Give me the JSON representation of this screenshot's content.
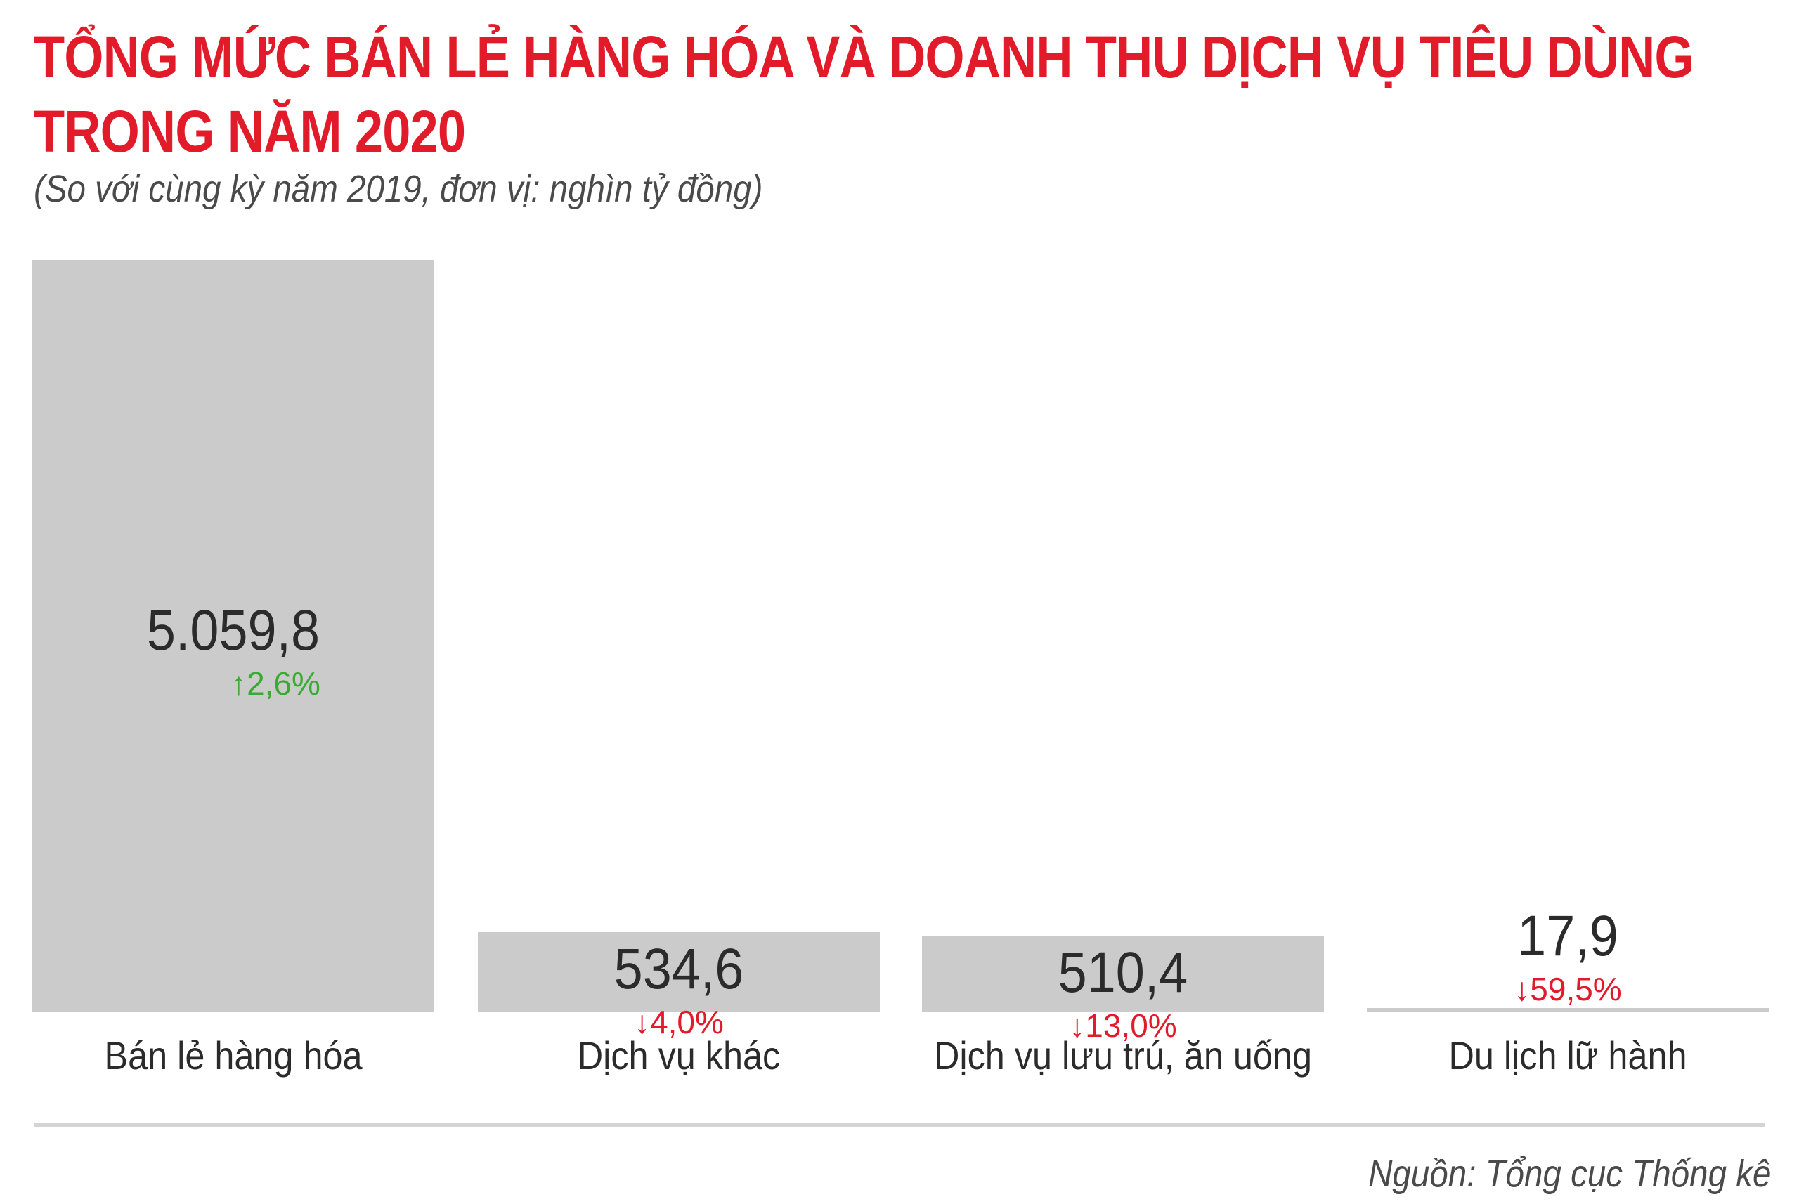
{
  "title_line1": "TỔNG MỨC BÁN LẺ HÀNG HÓA VÀ DOANH THU DỊCH VỤ TIÊU DÙNG",
  "title_line2": "TRONG NĂM 2020",
  "subtitle": "(So với cùng kỳ năm 2019, đơn vị: nghìn tỷ đồng)",
  "source": "Nguồn: Tổng cục Thống kê",
  "colors": {
    "bar": "#cccbcb",
    "baseline": "#d4d4d4",
    "value_text": "#2b2b2b",
    "up": "#3aaa35",
    "down": "#e21b2b",
    "title": "#e21b2b"
  },
  "chart_data": {
    "type": "bar",
    "categories": [
      "Bán lẻ hàng hóa",
      "Dịch vụ khác",
      "Dịch vụ lưu trú, ăn uống",
      "Du lịch lữ hành"
    ],
    "values": [
      5059.8,
      534.6,
      510.4,
      17.9
    ],
    "value_labels": [
      "5.059,8",
      "534,6",
      "510,4",
      "17,9"
    ],
    "changes": [
      {
        "direction": "up",
        "label": "2,6%"
      },
      {
        "direction": "down",
        "label": "4,0%"
      },
      {
        "direction": "down",
        "label": "13,0%"
      },
      {
        "direction": "down",
        "label": "59,5%"
      }
    ],
    "title": "",
    "xlabel": "",
    "ylabel": "",
    "ylim": [
      0,
      5059.8
    ],
    "grid": false,
    "legend": "none"
  }
}
